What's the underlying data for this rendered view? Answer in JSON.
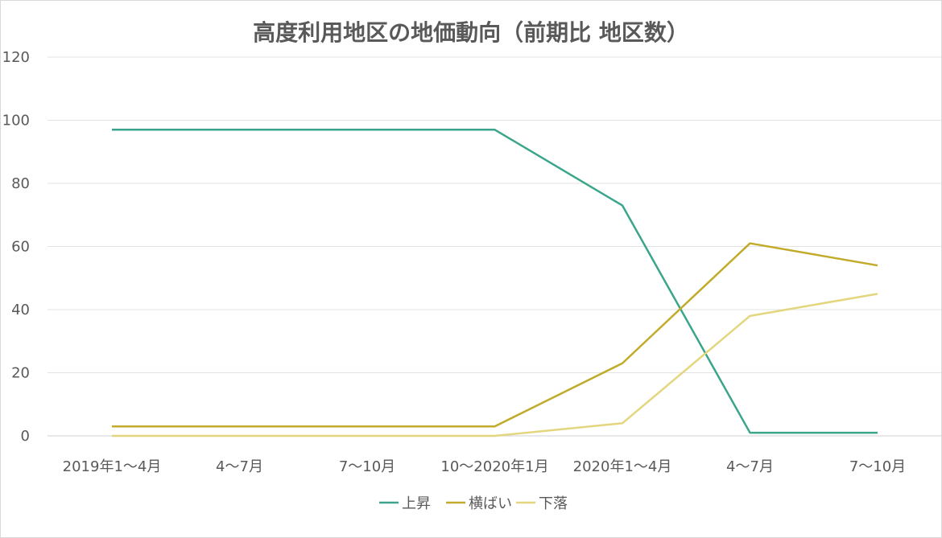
{
  "chart_data": {
    "type": "line",
    "title": "高度利用地区の地価動向（前期比 地区数）",
    "categories": [
      "2019年1～4月",
      "4～7月",
      "7～10月",
      "10～2020年1月",
      "2020年1～4月",
      "4～7月",
      "7～10月"
    ],
    "ylim": [
      0,
      120
    ],
    "yticks": [
      0,
      20,
      40,
      60,
      80,
      100,
      120
    ],
    "grid": true,
    "legend_position": "bottom",
    "series": [
      {
        "name": "上昇",
        "color": "#3aa58b",
        "values": [
          97,
          97,
          97,
          97,
          73,
          1,
          1
        ]
      },
      {
        "name": "横ばい",
        "color": "#c2ab2a",
        "values": [
          3,
          3,
          3,
          3,
          23,
          61,
          54
        ]
      },
      {
        "name": "下落",
        "color": "#e3d67e",
        "values": [
          0,
          0,
          0,
          0,
          4,
          38,
          45
        ]
      }
    ]
  }
}
